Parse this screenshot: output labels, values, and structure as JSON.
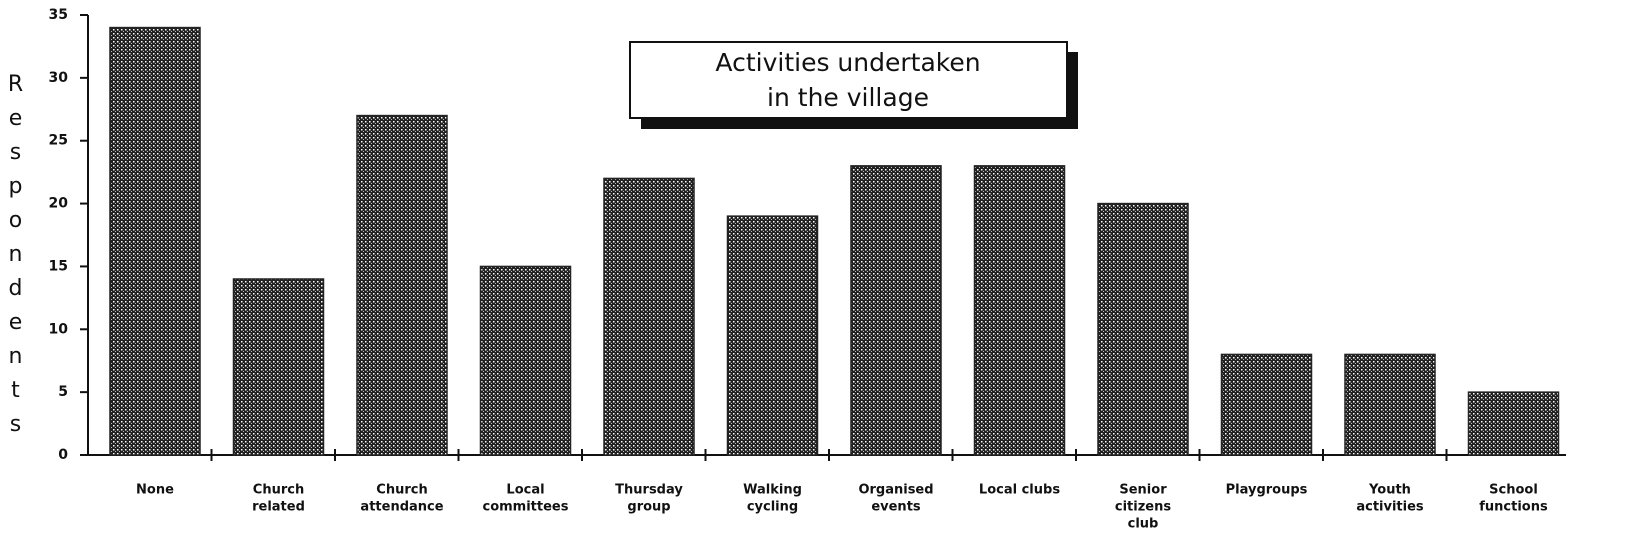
{
  "chart_data": {
    "type": "bar",
    "title": [
      "Activities undertaken",
      "in the village"
    ],
    "y_label": "Respondents",
    "categories": [
      [
        "None"
      ],
      [
        "Church",
        "related"
      ],
      [
        "Church",
        "attendance"
      ],
      [
        "Local",
        "committees"
      ],
      [
        "Thursday",
        "group"
      ],
      [
        "Walking",
        "cycling"
      ],
      [
        "Organised",
        "events"
      ],
      [
        "Local clubs"
      ],
      [
        "Senior",
        "citizens",
        "club"
      ],
      [
        "Playgroups"
      ],
      [
        "Youth",
        "activities"
      ],
      [
        "School",
        "functions"
      ]
    ],
    "values": [
      34,
      14,
      27,
      15,
      22,
      19,
      23,
      23,
      20,
      8,
      8,
      5
    ],
    "color": "#222222",
    "ylim": [
      0,
      35
    ],
    "yticks": [
      0,
      5,
      10,
      15,
      20,
      25,
      30,
      35
    ]
  }
}
